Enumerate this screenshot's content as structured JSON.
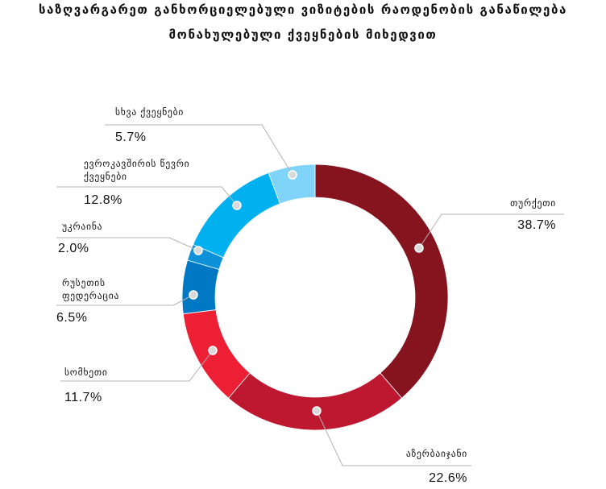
{
  "title_line1": "საზღვარგარეთ განხორციელებული ვიზიტების რაოდენობის განაწილება",
  "title_line2": "მონახულებული ქვეყნების მიხედვით",
  "chart_data": {
    "type": "pie",
    "variant": "donut",
    "title": "საზღვარგარეთ განხორციელებული ვიზიტების რაოდენობის განაწილება მონახულებული ქვეყნების მიხედვით",
    "unit": "%",
    "slices": [
      {
        "label_lines": [
          "თურქეთი"
        ],
        "value": 38.7,
        "value_text": "38.7%",
        "color": "#85141f"
      },
      {
        "label_lines": [
          "აზერბაიჯანი"
        ],
        "value": 22.6,
        "value_text": "22.6%",
        "color": "#bd1830"
      },
      {
        "label_lines": [
          "სომხეთი"
        ],
        "value": 11.7,
        "value_text": "11.7%",
        "color": "#ed1f35"
      },
      {
        "label_lines": [
          "რუსეთის",
          "ფედერაცია"
        ],
        "value": 6.5,
        "value_text": "6.5%",
        "color": "#0078c3"
      },
      {
        "label_lines": [
          "უკრაინა"
        ],
        "value": 2.0,
        "value_text": "2.0%",
        "color": "#0d91d8"
      },
      {
        "label_lines": [
          "ევროკავშირის წევრი",
          "ქვეყნები"
        ],
        "value": 12.8,
        "value_text": "12.8%",
        "color": "#00b0ef"
      },
      {
        "label_lines": [
          "სხვა ქვეყნები"
        ],
        "value": 5.7,
        "value_text": "5.7%",
        "color": "#80d3f9"
      }
    ]
  }
}
